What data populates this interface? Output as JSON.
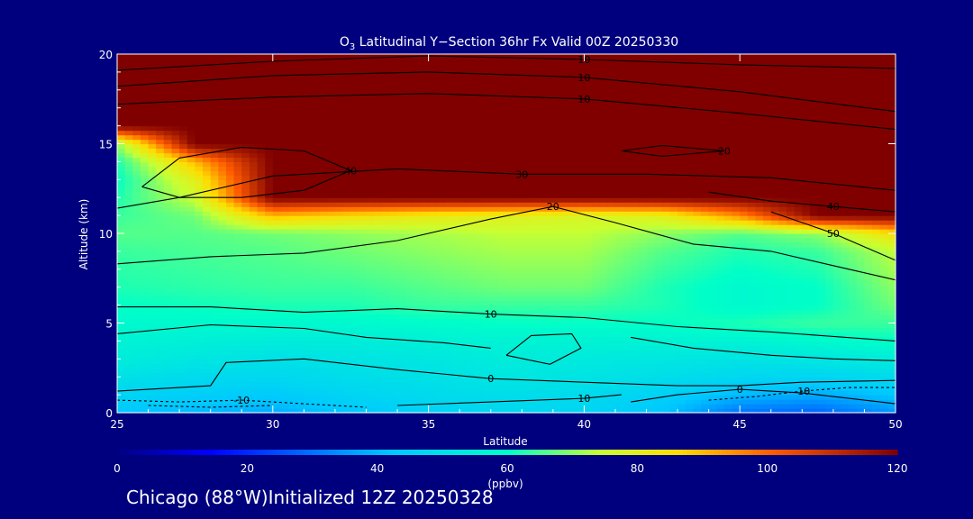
{
  "chart_data": {
    "type": "heatmap",
    "title": {
      "main": "O",
      "sub": "3",
      "rest": " Latitudinal Y−Section 36hr  Fx Valid 00Z 20250330"
    },
    "xlabel": "Latitude",
    "ylabel": "Altitude (km)",
    "xlim": [
      25,
      50
    ],
    "ylim": [
      0,
      20
    ],
    "xticks": [
      25,
      30,
      35,
      40,
      45,
      50
    ],
    "yticks": [
      0,
      5,
      10,
      15,
      20
    ],
    "field": {
      "lats": [
        25,
        27.5,
        30,
        32.5,
        35,
        37.5,
        40,
        42.5,
        45,
        47.5,
        50
      ],
      "alts": [
        0,
        1,
        2,
        3,
        4,
        5,
        6,
        7,
        8,
        9,
        10,
        11,
        12,
        13,
        14,
        15,
        16,
        17,
        18,
        19,
        20
      ],
      "values": [
        [
          42,
          40,
          38,
          42,
          45,
          47,
          46,
          42,
          30,
          28,
          35
        ],
        [
          46,
          44,
          43,
          46,
          48,
          49,
          48,
          45,
          40,
          38,
          42
        ],
        [
          50,
          48,
          47,
          49,
          50,
          52,
          51,
          49,
          47,
          46,
          48
        ],
        [
          54,
          52,
          50,
          51,
          52,
          54,
          53,
          52,
          51,
          52,
          54
        ],
        [
          56,
          55,
          54,
          54,
          55,
          56,
          56,
          56,
          56,
          58,
          60
        ],
        [
          58,
          58,
          58,
          58,
          59,
          60,
          60,
          60,
          62,
          64,
          64
        ],
        [
          60,
          61,
          62,
          62,
          64,
          64,
          64,
          62,
          58,
          60,
          68
        ],
        [
          62,
          63,
          64,
          64,
          66,
          68,
          68,
          62,
          58,
          60,
          70
        ],
        [
          63,
          64,
          65,
          66,
          68,
          70,
          70,
          64,
          60,
          62,
          72
        ],
        [
          64,
          65,
          66,
          68,
          70,
          72,
          72,
          66,
          62,
          64,
          74
        ],
        [
          66,
          66,
          68,
          70,
          72,
          74,
          74,
          70,
          66,
          70,
          85
        ],
        [
          64,
          68,
          90,
          85,
          82,
          80,
          78,
          80,
          95,
          120,
          120
        ],
        [
          62,
          75,
          120,
          120,
          120,
          120,
          120,
          120,
          120,
          120,
          120
        ],
        [
          60,
          80,
          120,
          120,
          120,
          120,
          120,
          120,
          120,
          120,
          120
        ],
        [
          62,
          90,
          120,
          120,
          120,
          120,
          120,
          120,
          120,
          120,
          120
        ],
        [
          70,
          120,
          120,
          120,
          120,
          120,
          120,
          120,
          120,
          120,
          120
        ],
        [
          120,
          120,
          120,
          120,
          120,
          120,
          120,
          120,
          120,
          120,
          120
        ],
        [
          120,
          120,
          120,
          120,
          120,
          120,
          120,
          120,
          120,
          120,
          120
        ],
        [
          120,
          120,
          120,
          120,
          120,
          120,
          120,
          120,
          120,
          120,
          120
        ],
        [
          120,
          120,
          120,
          120,
          120,
          120,
          120,
          120,
          120,
          120,
          120
        ],
        [
          120,
          120,
          120,
          120,
          120,
          120,
          120,
          120,
          120,
          120,
          120
        ]
      ]
    },
    "contours": [
      {
        "label": "10",
        "points": [
          [
            25,
            19.1
          ],
          [
            30,
            19.6
          ],
          [
            35,
            19.9
          ],
          [
            40,
            19.7
          ],
          [
            45,
            19.4
          ],
          [
            50,
            19.2
          ]
        ]
      },
      {
        "label": "10",
        "points": [
          [
            25,
            18.2
          ],
          [
            30,
            18.8
          ],
          [
            35,
            19.0
          ],
          [
            40,
            18.7
          ],
          [
            45,
            17.9
          ],
          [
            50,
            16.8
          ]
        ]
      },
      {
        "label": "10",
        "points": [
          [
            25,
            17.2
          ],
          [
            30,
            17.6
          ],
          [
            35,
            17.8
          ],
          [
            40,
            17.5
          ],
          [
            45,
            16.7
          ],
          [
            50,
            15.8
          ]
        ]
      },
      {
        "label": "20",
        "points": [
          [
            41.2,
            14.6
          ],
          [
            42.5,
            14.9
          ],
          [
            44.5,
            14.6
          ],
          [
            42.5,
            14.3
          ],
          [
            41.2,
            14.6
          ]
        ]
      },
      {
        "label": "40",
        "points": [
          [
            25.8,
            12.6
          ],
          [
            27,
            14.2
          ],
          [
            29,
            14.8
          ],
          [
            31,
            14.6
          ],
          [
            32.5,
            13.5
          ],
          [
            31,
            12.4
          ],
          [
            29,
            12
          ],
          [
            27,
            12
          ],
          [
            25.8,
            12.6
          ]
        ]
      },
      {
        "label": "30",
        "points": [
          [
            25,
            11.4
          ],
          [
            27,
            12
          ],
          [
            30,
            13.2
          ],
          [
            34,
            13.6
          ],
          [
            38,
            13.3
          ],
          [
            42,
            13.3
          ],
          [
            46,
            13.1
          ],
          [
            50,
            12.4
          ]
        ]
      },
      {
        "label": "40",
        "points": [
          [
            44,
            12.3
          ],
          [
            46,
            11.8
          ],
          [
            48,
            11.5
          ],
          [
            50,
            11.2
          ]
        ]
      },
      {
        "label": "50",
        "points": [
          [
            46,
            11.2
          ],
          [
            48,
            10
          ],
          [
            50,
            8.5
          ]
        ]
      },
      {
        "label": "20",
        "points": [
          [
            25,
            8.3
          ],
          [
            28,
            8.7
          ],
          [
            31,
            8.9
          ],
          [
            34,
            9.6
          ],
          [
            37,
            10.8
          ],
          [
            39,
            11.5
          ],
          [
            41,
            10.6
          ],
          [
            43.5,
            9.4
          ],
          [
            46,
            9
          ],
          [
            48,
            8.2
          ],
          [
            50,
            7.4
          ]
        ]
      },
      {
        "label": "10",
        "points": [
          [
            25,
            5.9
          ],
          [
            28,
            5.9
          ],
          [
            31,
            5.6
          ],
          [
            34,
            5.8
          ],
          [
            37,
            5.5
          ],
          [
            40,
            5.3
          ],
          [
            43,
            4.8
          ],
          [
            46,
            4.5
          ],
          [
            50,
            4.0
          ]
        ]
      },
      {
        "label": "",
        "points": [
          [
            37.5,
            3.2
          ],
          [
            38.3,
            4.3
          ],
          [
            39.6,
            4.4
          ],
          [
            39.9,
            3.6
          ],
          [
            38.9,
            2.7
          ],
          [
            37.5,
            3.2
          ]
        ]
      },
      {
        "label": "",
        "points": [
          [
            25,
            4.4
          ],
          [
            28,
            4.9
          ],
          [
            31,
            4.7
          ],
          [
            33,
            4.2
          ],
          [
            35.5,
            3.9
          ],
          [
            37,
            3.6
          ]
        ]
      },
      {
        "label": "",
        "points": [
          [
            41.5,
            4.2
          ],
          [
            43.5,
            3.6
          ],
          [
            46,
            3.2
          ],
          [
            48,
            3.0
          ],
          [
            50,
            2.9
          ]
        ]
      },
      {
        "label": "0",
        "points": [
          [
            25,
            1.2
          ],
          [
            28,
            1.5
          ],
          [
            28.5,
            2.8
          ],
          [
            31,
            3.0
          ],
          [
            34,
            2.4
          ],
          [
            37,
            1.9
          ],
          [
            40,
            1.7
          ],
          [
            43,
            1.5
          ],
          [
            45,
            1.5
          ],
          [
            47,
            1.7
          ],
          [
            50,
            1.8
          ]
        ]
      },
      {
        "label": "10",
        "points": [
          [
            34,
            0.4
          ],
          [
            37,
            0.6
          ],
          [
            40,
            0.8
          ],
          [
            41.2,
            1.0
          ]
        ]
      },
      {
        "label": "0",
        "points": [
          [
            41.5,
            0.6
          ],
          [
            43,
            1.0
          ],
          [
            45,
            1.3
          ],
          [
            47,
            1.1
          ],
          [
            50,
            0.5
          ]
        ]
      }
    ],
    "neg_contours": [
      {
        "label": "-10",
        "points": [
          [
            25,
            0.7
          ],
          [
            27,
            0.6
          ],
          [
            29,
            0.7
          ],
          [
            31,
            0.5
          ],
          [
            33,
            0.3
          ]
        ]
      },
      {
        "label": "",
        "points": [
          [
            26,
            0.4
          ],
          [
            28,
            0.3
          ],
          [
            30,
            0.4
          ]
        ]
      },
      {
        "label": "-10",
        "points": [
          [
            44,
            0.7
          ],
          [
            45.5,
            0.9
          ],
          [
            47,
            1.2
          ],
          [
            48.5,
            1.4
          ],
          [
            50,
            1.4
          ]
        ]
      }
    ],
    "colorbar": {
      "ticks": [
        0,
        20,
        40,
        60,
        80,
        100,
        120
      ],
      "label": "(ppbv)",
      "min": 0,
      "max": 120
    },
    "colors": {
      "background": "#00007f",
      "foreground": "#ffffff",
      "contour": "#000000"
    }
  },
  "footer": {
    "caption": "Chicago (88°W)Initialized 12Z 20250328"
  }
}
